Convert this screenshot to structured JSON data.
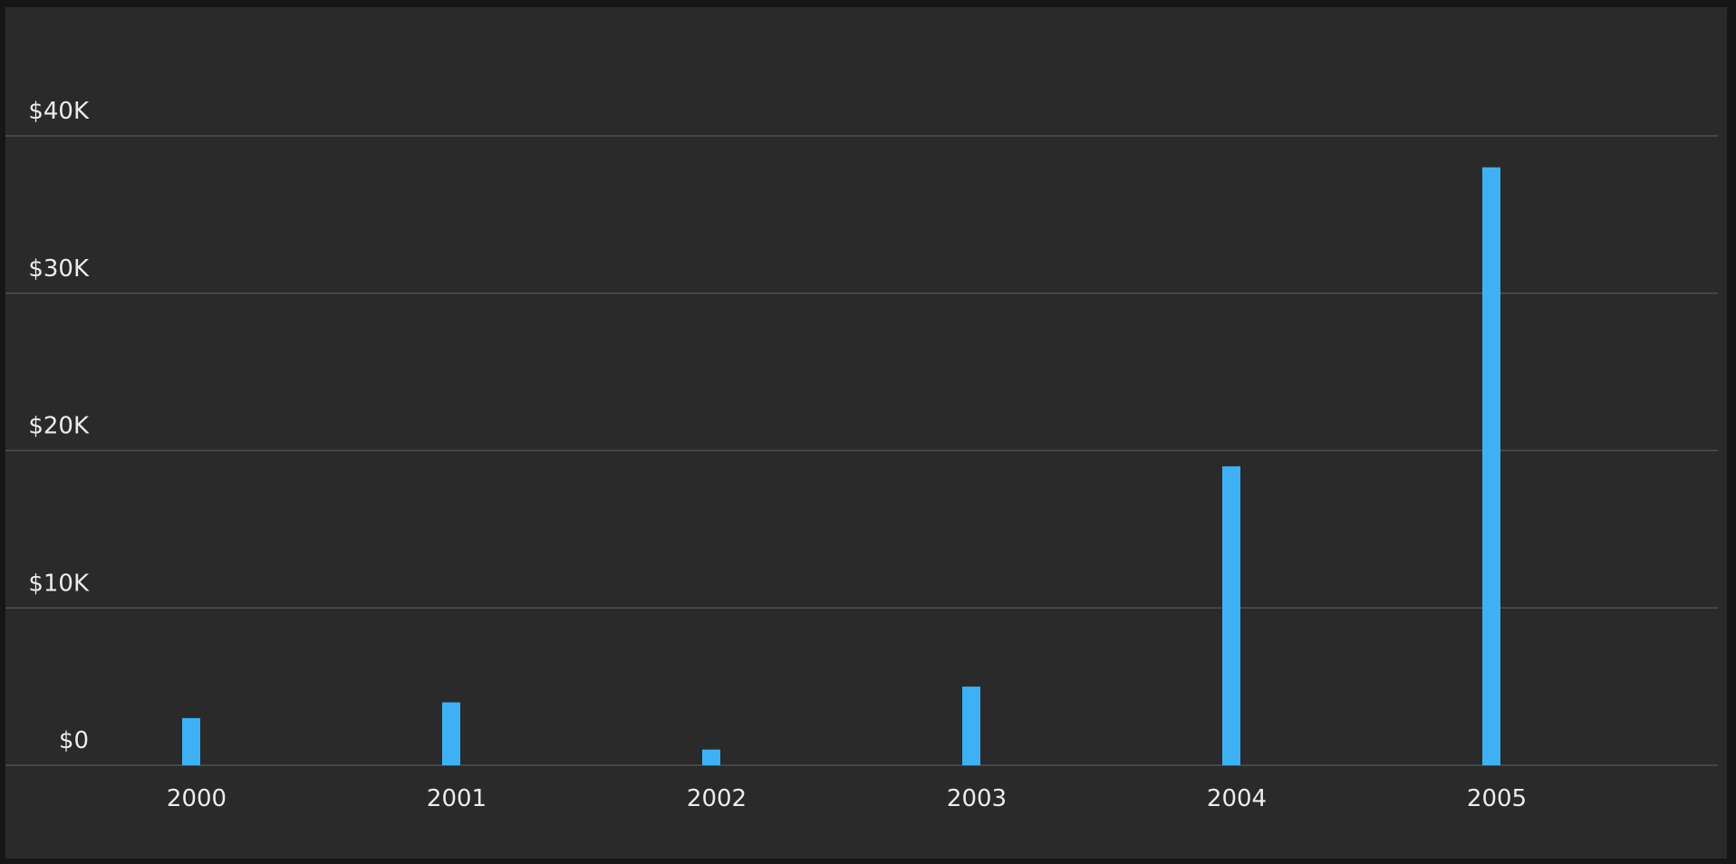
{
  "chart_data": {
    "type": "bar",
    "title": "",
    "xlabel": "",
    "ylabel": "",
    "categories": [
      "2000",
      "2001",
      "2002",
      "2003",
      "2004",
      "2005"
    ],
    "series": [
      {
        "values": [
          3000,
          4000,
          1000,
          5000,
          19000,
          38000
        ]
      }
    ],
    "ylim": [
      0,
      40000
    ],
    "yticks": [
      0,
      10000,
      20000,
      30000,
      40000
    ],
    "ytick_labels": [
      "$0",
      "$10K",
      "$20K",
      "$30K",
      "$40K"
    ],
    "grid": true,
    "legend": "none",
    "colors": {
      "bar": "#3eb1f5",
      "background": "#2a2a2a",
      "grid": "#4f4f4f",
      "text": "#ececec"
    }
  }
}
